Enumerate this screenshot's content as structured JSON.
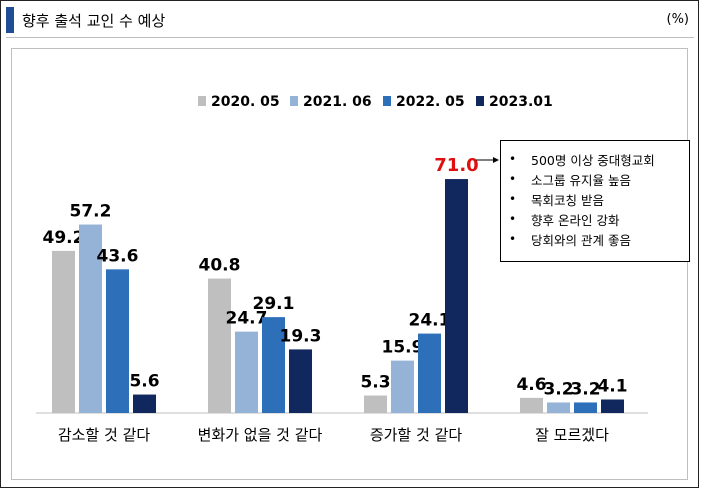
{
  "header": {
    "title": "향후 출석 교인 수 예상",
    "unit": "(%)"
  },
  "colors": {
    "s2020": "#bfbfbf",
    "s2021": "#95b3d7",
    "s2022": "#2e6fba",
    "s2023": "#11285f",
    "highlight": "#e01010",
    "accent": "#1f4e96"
  },
  "chart_data": {
    "type": "bar",
    "title": "향후 출석 교인 수 예상",
    "ylabel": "(%)",
    "categories": [
      "감소할 것 같다",
      "변화가 없을 것 같다",
      "증가할 것 같다",
      "잘 모르겠다"
    ],
    "series": [
      {
        "name": "2020. 05",
        "values": [
          49.2,
          40.8,
          5.3,
          4.6
        ]
      },
      {
        "name": "2021. 06",
        "values": [
          57.2,
          24.7,
          15.9,
          3.2
        ]
      },
      {
        "name": "2022. 05",
        "values": [
          43.6,
          29.1,
          24.1,
          3.2
        ]
      },
      {
        "name": "2023.01",
        "values": [
          5.6,
          19.3,
          71.0,
          4.1
        ]
      }
    ],
    "legend_position": "top",
    "highlighted_value": "71.0",
    "ylim": [
      0,
      80
    ],
    "grid": false
  },
  "annotation": {
    "items": [
      "500명 이상 중대형교회",
      "소그룹 유지율 높음",
      "목회코칭 받음",
      "향후 온라인 강화",
      "당회와의 관계 좋음"
    ]
  }
}
